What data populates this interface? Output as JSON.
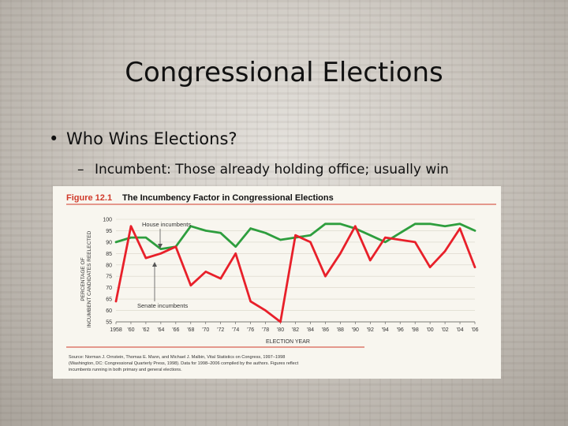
{
  "slide": {
    "title": "Congressional Elections",
    "bullet": "Who Wins Elections?",
    "sub_bullet": "Incumbent: Those already holding office; usually win",
    "bullet_marker": "•",
    "sub_marker": "–"
  },
  "figure": {
    "number": "Figure 12.1",
    "title": "The Incumbency Factor in Congressional Elections",
    "source_lines": [
      "Source: Norman J. Ornstein, Thomas E. Mann, and Michael J. Malbin, Vital Statistics on Congress, 1997–1998",
      "(Washington, DC: Congressional Quarterly Press, 1998). Data for 1998–2006 compiled by the authors. Figures reflect",
      "incumbents running in both primary and general elections."
    ],
    "accent_color": "#d03a2a"
  },
  "chart_data": {
    "type": "line",
    "xlabel": "ELECTION YEAR",
    "ylabel": "PERCENTAGE OF INCUMBENT CANDIDATES REELECTED",
    "ylim": [
      55,
      100
    ],
    "yticks": [
      "55",
      "60",
      "65",
      "70",
      "75",
      "80",
      "85",
      "90",
      "95",
      "100"
    ],
    "x": [
      1958,
      1960,
      1962,
      1964,
      1966,
      1968,
      1970,
      1972,
      1974,
      1976,
      1978,
      1980,
      1982,
      1984,
      1986,
      1988,
      1990,
      1992,
      1994,
      1996,
      1998,
      2000,
      2002,
      2004,
      2006
    ],
    "xtick_labels": [
      "1958",
      "'60",
      "'62",
      "'64",
      "'66",
      "'68",
      "'70",
      "'72",
      "'74",
      "'76",
      "'78",
      "'80",
      "'82",
      "'84",
      "'86",
      "'88",
      "'90",
      "'92",
      "'94",
      "'96",
      "'98",
      "'00",
      "'02",
      "'04",
      "'06"
    ],
    "series": [
      {
        "name": "House incumbents",
        "color": "#2e9e3e",
        "values": [
          90,
          92,
          92,
          87,
          88,
          97,
          95,
          94,
          88,
          96,
          94,
          91,
          92,
          93,
          98,
          98,
          96,
          93,
          90,
          94,
          98,
          98,
          97,
          98,
          95
        ]
      },
      {
        "name": "Senate incumbents",
        "color": "#e8202a",
        "values": [
          64,
          97,
          83,
          85,
          88,
          71,
          77,
          74,
          85,
          64,
          60,
          55,
          93,
          90,
          75,
          85,
          97,
          82,
          92,
          91,
          90,
          79,
          86,
          96,
          79
        ]
      }
    ]
  }
}
